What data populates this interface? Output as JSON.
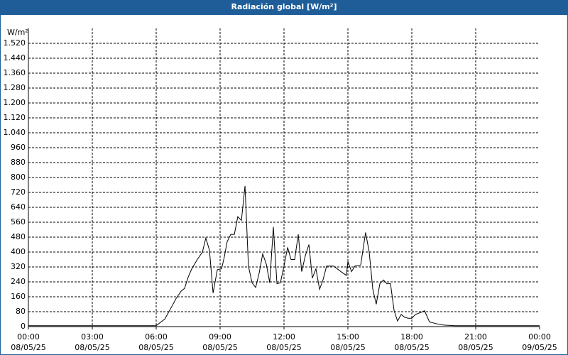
{
  "chart_data": {
    "type": "line",
    "title": "Radiación global [W/m²]",
    "y_unit": "W/m²",
    "x": [
      0,
      6,
      6.17,
      6.4,
      6.67,
      6.93,
      7.17,
      7.33,
      7.5,
      7.67,
      7.93,
      8.17,
      8.33,
      8.5,
      8.67,
      8.87,
      9.07,
      9.2,
      9.33,
      9.5,
      9.67,
      9.83,
      10.0,
      10.17,
      10.33,
      10.5,
      10.67,
      10.83,
      11.0,
      11.17,
      11.33,
      11.5,
      11.67,
      11.83,
      12.0,
      12.17,
      12.33,
      12.5,
      12.67,
      12.83,
      13.0,
      13.17,
      13.33,
      13.5,
      13.67,
      13.83,
      14.0,
      14.33,
      14.67,
      14.93,
      15.0,
      15.17,
      15.33,
      15.6,
      15.83,
      16.0,
      16.17,
      16.33,
      16.5,
      16.67,
      16.83,
      17.0,
      17.17,
      17.33,
      17.5,
      17.67,
      17.83,
      18.0,
      18.17,
      18.4,
      18.6,
      18.83,
      19.17,
      19.5,
      20.0,
      24
    ],
    "series": [
      {
        "name": "Radiación global",
        "color": "#000000",
        "values": [
          5,
          5,
          20,
          40,
          95,
          150,
          190,
          205,
          265,
          310,
          360,
          400,
          475,
          410,
          180,
          305,
          310,
          375,
          455,
          495,
          495,
          590,
          570,
          755,
          325,
          235,
          210,
          285,
          390,
          335,
          235,
          535,
          230,
          235,
          325,
          425,
          360,
          360,
          495,
          295,
          380,
          440,
          260,
          310,
          200,
          250,
          325,
          325,
          295,
          275,
          350,
          295,
          325,
          330,
          505,
          400,
          200,
          120,
          230,
          250,
          230,
          230,
          85,
          30,
          65,
          50,
          45,
          45,
          65,
          75,
          85,
          25,
          15,
          8,
          5,
          5
        ]
      }
    ],
    "xlim": [
      0,
      24
    ],
    "xticks": [
      {
        "value": 0,
        "label": "00:00"
      },
      {
        "value": 3,
        "label": "03:00"
      },
      {
        "value": 6,
        "label": "06:00"
      },
      {
        "value": 9,
        "label": "09:00"
      },
      {
        "value": 12,
        "label": "12:00"
      },
      {
        "value": 15,
        "label": "15:00"
      },
      {
        "value": 18,
        "label": "18:00"
      },
      {
        "value": 21,
        "label": "21:00"
      },
      {
        "value": 24,
        "label": "00:00"
      }
    ],
    "xtick_dates": [
      "08/05/25",
      "08/05/25",
      "08/05/25",
      "08/05/25",
      "08/05/25",
      "08/05/25",
      "08/05/25",
      "08/05/25",
      "09/05/25"
    ],
    "ylim": [
      0,
      1600
    ],
    "yticks": [
      0,
      80,
      160,
      240,
      320,
      400,
      480,
      560,
      640,
      720,
      800,
      880,
      960,
      {
        "value": 1040,
        "label": "1.040"
      },
      {
        "value": 1120,
        "label": "1.120"
      },
      {
        "value": 1200,
        "label": "1.200"
      },
      {
        "value": 1280,
        "label": "1.280"
      },
      {
        "value": 1360,
        "label": "1.360"
      },
      {
        "value": 1440,
        "label": "1.440"
      },
      {
        "value": 1520,
        "label": "1.520"
      }
    ],
    "grid": true
  }
}
